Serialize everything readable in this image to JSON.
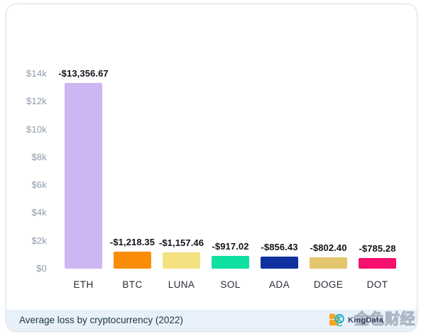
{
  "chart_data": {
    "type": "bar",
    "title": "Average loss by cryptocurrency (2022)",
    "categories": [
      "ETH",
      "BTC",
      "LUNA",
      "SOL",
      "ADA",
      "DOGE",
      "DOT"
    ],
    "values": [
      -13356.67,
      -1218.35,
      -1157.46,
      -917.02,
      -856.43,
      -802.4,
      -785.28
    ],
    "value_labels": [
      "-$13,356.67",
      "-$1,218.35",
      "-$1,157.46",
      "-$917.02",
      "-$856.43",
      "-$802.40",
      "-$785.28"
    ],
    "bar_colors": [
      "#cdb6f2",
      "#fb8c05",
      "#f4e180",
      "#10e0a1",
      "#10309e",
      "#e4c46d",
      "#f5106e"
    ],
    "y_ticks": [
      "$0",
      "$2k",
      "$4k",
      "$6k",
      "$8k",
      "$10k",
      "$12k",
      "$14k"
    ],
    "y_tick_values": [
      0,
      2000,
      4000,
      6000,
      8000,
      10000,
      12000,
      14000
    ],
    "ylim": [
      0,
      14000
    ],
    "xlabel": "",
    "ylabel": "",
    "grid": false,
    "legend": false,
    "bar_orientation": "vertical"
  },
  "footer": {
    "title": "Average loss by cryptocurrency (2022)",
    "background": "#e8f1fa",
    "text_color": "#203648"
  },
  "watermark": {
    "brand": "KingData",
    "overlay_text": "金色财经",
    "icon": "kingdata-k-coin-icon",
    "icon_colors": {
      "orange": "#f5a51f",
      "teal": "#2fb4c6"
    }
  },
  "colors": {
    "axis_label": "#8e9aa9",
    "value_label": "#10131a",
    "category_label": "#272c34",
    "card_border": "#d9e1e7",
    "card_background": "#ffffff"
  }
}
